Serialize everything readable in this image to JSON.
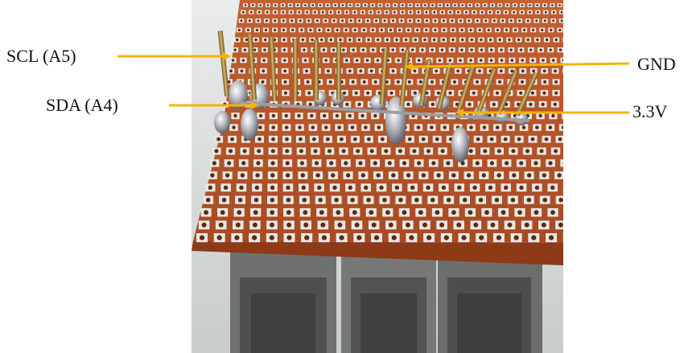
{
  "labels": {
    "scl": "SCL (A5)",
    "sda": "SDA (A4)",
    "gnd": "GND",
    "v33": "3.3V"
  },
  "photo": {
    "subject": "perforated-prototype-board",
    "board_color": "#b8542a",
    "pad_color": "#e7e7e4",
    "connector_color": "#6f7171",
    "arrow_color": "#f5b400"
  }
}
